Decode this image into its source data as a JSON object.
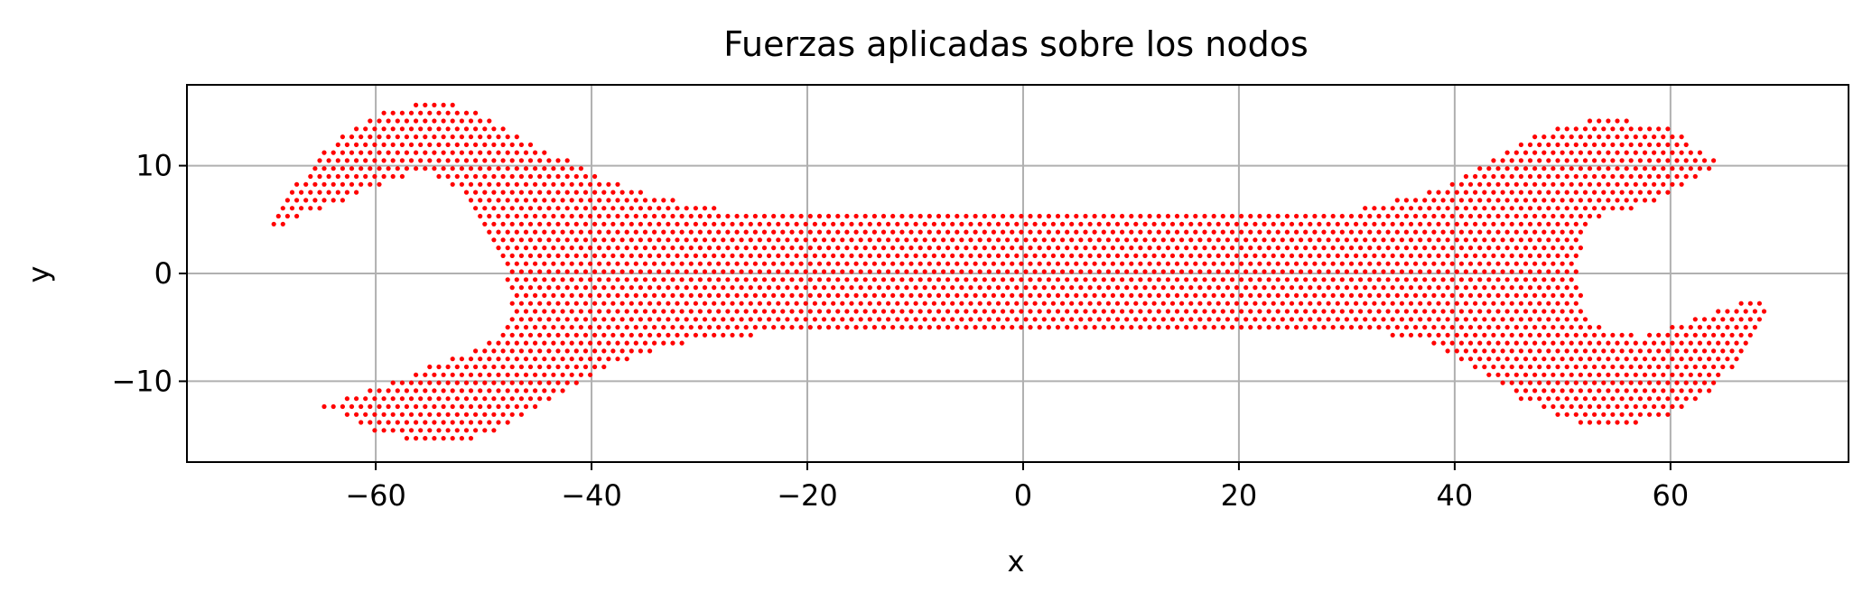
{
  "chart_data": {
    "type": "scatter",
    "title": "Fuerzas aplicadas sobre los nodos",
    "xlabel": "x",
    "ylabel": "y",
    "xlim": [
      -77.5,
      76.5
    ],
    "ylim": [
      -17.5,
      17.5
    ],
    "xticks": [
      -60,
      -40,
      -20,
      0,
      20,
      40,
      60
    ],
    "yticks": [
      -10,
      0,
      10
    ],
    "xtick_labels": [
      "−60",
      "−40",
      "−20",
      "0",
      "20",
      "40",
      "60"
    ],
    "ytick_labels": [
      "−10",
      "0",
      "10"
    ],
    "grid": true,
    "marker_color": "#ff0000",
    "shape": {
      "left_outline": [
        [
          -70.5,
          3.8
        ],
        [
          -68,
          7.5
        ],
        [
          -64,
          12.2
        ],
        [
          -59,
          15.2
        ],
        [
          -55,
          16.0
        ],
        [
          -51,
          15.3
        ],
        [
          -46,
          12.5
        ],
        [
          -41,
          9.8
        ],
        [
          -36,
          7.7
        ],
        [
          -30,
          6.2
        ],
        [
          -24,
          5.6
        ],
        [
          -20,
          5.5
        ],
        [
          -20,
          -5.5
        ],
        [
          -24,
          -5.6
        ],
        [
          -30,
          -6.2
        ],
        [
          -36,
          -7.7
        ],
        [
          -41,
          -10
        ],
        [
          -46,
          -13.1
        ],
        [
          -51,
          -15.5
        ],
        [
          -55,
          -16.0
        ],
        [
          -60,
          -14.7
        ],
        [
          -65,
          -12.3
        ],
        [
          -58,
          -9.8
        ],
        [
          -52,
          -7.5
        ],
        [
          -49,
          -6.0
        ],
        [
          -47.5,
          -3.5
        ],
        [
          -48,
          0
        ],
        [
          -49.8,
          4
        ],
        [
          -52,
          7.5
        ],
        [
          -55.5,
          9.6
        ],
        [
          -58,
          8.7
        ],
        [
          -63,
          6.8
        ],
        [
          -70.5,
          3.8
        ]
      ],
      "right_outline": [
        [
          20,
          5.5
        ],
        [
          26,
          5.6
        ],
        [
          32,
          6.1
        ],
        [
          38,
          7.8
        ],
        [
          42,
          9.8
        ],
        [
          46,
          12.2
        ],
        [
          50,
          13.8
        ],
        [
          55,
          14.5
        ],
        [
          60,
          13.4
        ],
        [
          65,
          10.2
        ],
        [
          58,
          6.5
        ],
        [
          53,
          5.0
        ],
        [
          51.5,
          2.0
        ],
        [
          51.2,
          -1.0
        ],
        [
          53,
          -4.8
        ],
        [
          57,
          -5.8
        ],
        [
          62.5,
          -4.1
        ],
        [
          69.5,
          -1.8
        ],
        [
          67.5,
          -6.5
        ],
        [
          64,
          -10.8
        ],
        [
          60,
          -13.2
        ],
        [
          55,
          -14.3
        ],
        [
          50,
          -13.6
        ],
        [
          46,
          -11.6
        ],
        [
          42,
          -9.0
        ],
        [
          38,
          -6.6
        ],
        [
          33,
          -5.6
        ],
        [
          26,
          -5.5
        ],
        [
          20,
          -5.5
        ]
      ],
      "shaft": {
        "x": [
          -20,
          20
        ],
        "y": [
          -5.5,
          5.5
        ]
      }
    }
  }
}
